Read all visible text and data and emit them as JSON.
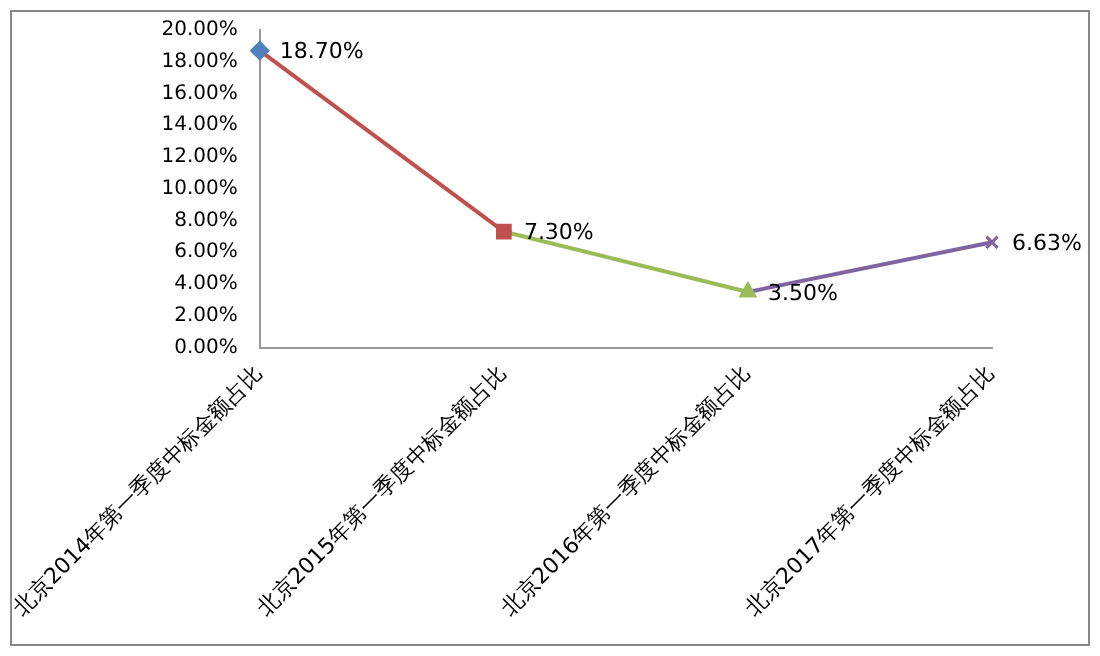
{
  "chart_data": {
    "type": "line",
    "categories": [
      "北京2014年第一季度中标金额占比",
      "北京2015年第一季度中标金额占比",
      "北京2016年第一季度中标金额占比",
      "北京2017年第一季度中标金额占比"
    ],
    "series": [
      {
        "colors": [
          "#4f81bd",
          "#c0504d",
          "#9bbb59",
          "#8064a2"
        ],
        "values": [
          18.7,
          7.3,
          3.5,
          6.63
        ],
        "value_labels": [
          "18.70%",
          "7.30%",
          "3.50%",
          "6.63%"
        ],
        "marker": [
          "diamond",
          "square",
          "triangle",
          "cross"
        ]
      }
    ],
    "ylim": [
      0,
      20
    ],
    "yticks": [
      {
        "value": 0,
        "label": "0.00%"
      },
      {
        "value": 2,
        "label": "2.00%"
      },
      {
        "value": 4,
        "label": "4.00%"
      },
      {
        "value": 6,
        "label": "6.00%"
      },
      {
        "value": 8,
        "label": "8.00%"
      },
      {
        "value": 10,
        "label": "10.00%"
      },
      {
        "value": 12,
        "label": "12.00%"
      },
      {
        "value": 14,
        "label": "14.00%"
      },
      {
        "value": 16,
        "label": "16.00%"
      },
      {
        "value": 18,
        "label": "18.00%"
      },
      {
        "value": 20,
        "label": "20.00%"
      }
    ],
    "grid": false,
    "legend": false,
    "line_style": "solid"
  }
}
